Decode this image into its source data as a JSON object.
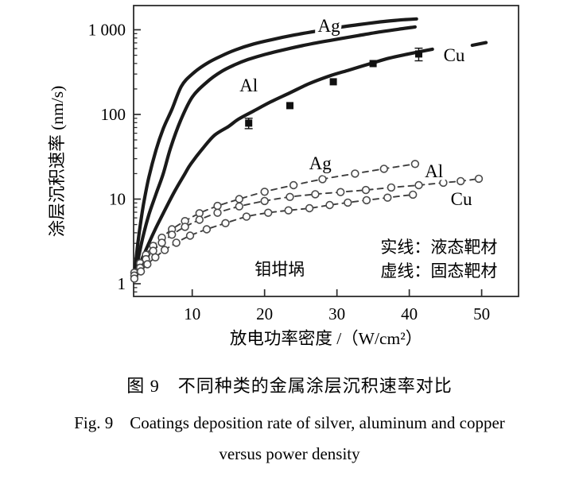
{
  "figure": {
    "caption_zh": "图 9　不同种类的金属涂层沉积速率对比",
    "caption_en_line1": "Fig. 9　Coatings deposition rate of silver, aluminum and copper",
    "caption_en_line2": "versus power density"
  },
  "colors": {
    "solid_line": "#1a1a1a",
    "dashed_line": "#3d3d3d",
    "open_marker_stroke": "#4a4a4a",
    "frame": "#2b2b2b",
    "text": "#000000"
  },
  "chart_data": {
    "type": "line",
    "xlabel": "放电功率密度 /（W/cm²）",
    "ylabel": "涂层沉积速率 (nm/s)",
    "x_axis": {
      "scale": "linear",
      "min": 1.9,
      "max": 55.1,
      "major_ticks": [
        10,
        20,
        30,
        40,
        50
      ]
    },
    "y_axis": {
      "scale": "log",
      "min": 0.708,
      "max": 1932,
      "major_ticks": [
        {
          "value": 1,
          "label": "1"
        },
        {
          "value": 10,
          "label": "10"
        },
        {
          "value": 100,
          "label": "100"
        },
        {
          "value": 1000,
          "label": "1 000"
        }
      ]
    },
    "legend_note": [
      "实线：液态靶材",
      "虚线：固态靶材"
    ],
    "annotations": [
      {
        "id": "crucible-note",
        "text": "钼坩埚",
        "at": [
          22.1,
          1.48
        ]
      },
      {
        "id": "legend-solid-note",
        "text": "实线：液态靶材",
        "at": [
          44.1,
          2.7
        ]
      },
      {
        "id": "legend-dashed-note",
        "text": "虚线：固态靶材",
        "at": [
          44.1,
          1.41
        ]
      }
    ],
    "series": [
      {
        "id": "ag-liquid",
        "label": "Ag",
        "target": "液态靶材",
        "line": "solid",
        "marker": null,
        "label_at": [
          28.9,
          1120
        ],
        "points": [
          [
            2.1,
            1.45
          ],
          [
            2.4,
            2.6
          ],
          [
            2.8,
            4.8
          ],
          [
            3.3,
            9
          ],
          [
            4,
            18
          ],
          [
            5,
            38
          ],
          [
            6,
            68
          ],
          [
            7.2,
            115
          ],
          [
            8.5,
            215
          ],
          [
            10,
            300
          ],
          [
            12,
            400
          ],
          [
            14,
            490
          ],
          [
            16,
            580
          ],
          [
            18.5,
            680
          ],
          [
            21,
            765
          ],
          [
            24,
            865
          ],
          [
            27,
            960
          ],
          [
            30,
            1060
          ],
          [
            33,
            1150
          ],
          [
            36,
            1240
          ],
          [
            38.5,
            1300
          ],
          [
            41,
            1345
          ]
        ]
      },
      {
        "id": "al-liquid",
        "label": "Al",
        "target": "液态靶材",
        "line": "solid",
        "marker": null,
        "label_at": [
          17.8,
          222
        ],
        "points": [
          [
            2.1,
            1.3
          ],
          [
            2.6,
            2.1
          ],
          [
            3.2,
            3.6
          ],
          [
            4,
            6.5
          ],
          [
            5,
            11.5
          ],
          [
            6,
            20
          ],
          [
            7,
            40
          ],
          [
            8.4,
            85
          ],
          [
            10,
            160
          ],
          [
            12,
            240
          ],
          [
            14,
            320
          ],
          [
            16,
            390
          ],
          [
            17.7,
            445
          ],
          [
            20,
            510
          ],
          [
            23,
            590
          ],
          [
            26,
            670
          ],
          [
            29.5,
            760
          ],
          [
            33,
            855
          ],
          [
            36,
            945
          ],
          [
            38.5,
            1015
          ],
          [
            40.8,
            1080
          ]
        ]
      },
      {
        "id": "cu-liquid",
        "label": "Cu",
        "target": "液态靶材",
        "line": "solid",
        "marker": null,
        "label_at": [
          46.2,
          506
        ],
        "points": [
          [
            2.1,
            1.2
          ],
          [
            3,
            1.9
          ],
          [
            4,
            3
          ],
          [
            5,
            4.6
          ],
          [
            6,
            6.8
          ],
          [
            7.6,
            12.5
          ],
          [
            9,
            20
          ],
          [
            9.8,
            26
          ],
          [
            11.5,
            40
          ],
          [
            13.1,
            57
          ],
          [
            15,
            72
          ],
          [
            16.4,
            88
          ],
          [
            18.5,
            110
          ],
          [
            20.8,
            140
          ],
          [
            23.5,
            180
          ],
          [
            26.2,
            232
          ],
          [
            29,
            285
          ],
          [
            31.7,
            335
          ],
          [
            34.5,
            395
          ],
          [
            37.2,
            462
          ],
          [
            40,
            520
          ],
          [
            43.2,
            590
          ]
        ],
        "extra_segment": [
          [
            48.7,
            655
          ],
          [
            50.6,
            705
          ]
        ]
      },
      {
        "id": "cu-liquid-data",
        "label": null,
        "target": "液态靶材",
        "line": "none",
        "marker": "square",
        "points": [
          [
            17.8,
            79
          ],
          [
            23.5,
            127
          ],
          [
            29.5,
            243
          ],
          [
            35,
            399
          ],
          [
            41.3,
            518
          ]
        ],
        "error_frac": [
          0.14,
          0,
          0,
          0,
          0.17
        ]
      },
      {
        "id": "ag-solid-target",
        "label": "Ag",
        "target": "固态靶材",
        "line": "dashed",
        "marker": "circle",
        "label_at": [
          27.7,
          26.7
        ],
        "points": [
          [
            2,
            1.35
          ],
          [
            2.8,
            1.75
          ],
          [
            3.6,
            2.2
          ],
          [
            4.6,
            2.8
          ],
          [
            5.8,
            3.5
          ],
          [
            7.2,
            4.4
          ],
          [
            9,
            5.5
          ],
          [
            11,
            6.8
          ],
          [
            13.5,
            8.3
          ],
          [
            16.5,
            10
          ],
          [
            20,
            12.2
          ],
          [
            24,
            14.6
          ],
          [
            28,
            17.2
          ],
          [
            32.5,
            20
          ],
          [
            36.5,
            22.8
          ],
          [
            40.8,
            26
          ]
        ]
      },
      {
        "id": "al-solid-target",
        "label": "Al",
        "target": "固态靶材",
        "line": "dashed",
        "marker": "circle",
        "label_at": [
          43.4,
          21.5
        ],
        "points": [
          [
            2,
            1.25
          ],
          [
            2.8,
            1.55
          ],
          [
            3.6,
            1.95
          ],
          [
            4.6,
            2.45
          ],
          [
            5.8,
            3.05
          ],
          [
            7.2,
            3.8
          ],
          [
            9,
            4.7
          ],
          [
            11,
            5.7
          ],
          [
            13.5,
            6.9
          ],
          [
            16.5,
            8.2
          ],
          [
            20,
            9.5
          ],
          [
            23.5,
            10.6
          ],
          [
            27,
            11.4
          ],
          [
            30.5,
            12.1
          ],
          [
            34,
            12.8
          ],
          [
            37.5,
            13.7
          ],
          [
            41.3,
            14.6
          ],
          [
            44.7,
            15.6
          ],
          [
            47.1,
            16.3
          ],
          [
            49.6,
            17.4
          ]
        ]
      },
      {
        "id": "cu-solid-target",
        "label": "Cu",
        "target": "固态靶材",
        "line": "dashed",
        "marker": "circle",
        "label_at": [
          47.2,
          10.1
        ],
        "points": [
          [
            2,
            1.15
          ],
          [
            2.9,
            1.4
          ],
          [
            3.8,
            1.7
          ],
          [
            4.9,
            2.05
          ],
          [
            6.2,
            2.5
          ],
          [
            7.8,
            3.05
          ],
          [
            9.7,
            3.7
          ],
          [
            12,
            4.4
          ],
          [
            14.6,
            5.2
          ],
          [
            17.5,
            6.2
          ],
          [
            20.5,
            6.9
          ],
          [
            23.3,
            7.35
          ],
          [
            26.2,
            7.8
          ],
          [
            29,
            8.5
          ],
          [
            31.5,
            9.1
          ],
          [
            34.1,
            9.7
          ],
          [
            37,
            10.4
          ],
          [
            40.5,
            11.3
          ]
        ]
      }
    ]
  }
}
